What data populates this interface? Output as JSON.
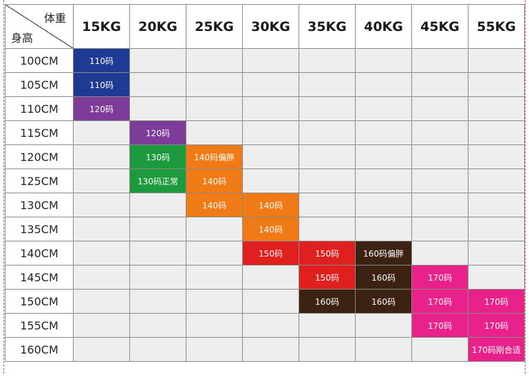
{
  "header": {
    "corner_top": "体重",
    "corner_bottom": "身高",
    "weights": [
      "15KG",
      "20KG",
      "25KG",
      "30KG",
      "35KG",
      "40KG",
      "45KG",
      "55KG"
    ]
  },
  "rows": [
    {
      "height": "100CM",
      "cells": [
        "110码",
        "",
        "",
        "",
        "",
        "",
        "",
        ""
      ]
    },
    {
      "height": "105CM",
      "cells": [
        "110码",
        "",
        "",
        "",
        "",
        "",
        "",
        ""
      ]
    },
    {
      "height": "110CM",
      "cells": [
        "120码",
        "",
        "",
        "",
        "",
        "",
        "",
        ""
      ]
    },
    {
      "height": "115CM",
      "cells": [
        "",
        "120码",
        "",
        "",
        "",
        "",
        "",
        ""
      ]
    },
    {
      "height": "120CM",
      "cells": [
        "",
        "130码",
        "140码偏胖",
        "",
        "",
        "",
        "",
        ""
      ]
    },
    {
      "height": "125CM",
      "cells": [
        "",
        "130码正常",
        "140码",
        "",
        "",
        "",
        "",
        ""
      ]
    },
    {
      "height": "130CM",
      "cells": [
        "",
        "",
        "140码",
        "140码",
        "",
        "",
        "",
        ""
      ]
    },
    {
      "height": "135CM",
      "cells": [
        "",
        "",
        "",
        "140码",
        "",
        "",
        "",
        ""
      ]
    },
    {
      "height": "140CM",
      "cells": [
        "",
        "",
        "",
        "150码",
        "150码",
        "160码偏胖",
        "",
        ""
      ]
    },
    {
      "height": "145CM",
      "cells": [
        "",
        "",
        "",
        "",
        "150码",
        "160码",
        "170码",
        ""
      ]
    },
    {
      "height": "150CM",
      "cells": [
        "",
        "",
        "",
        "",
        "160码",
        "160码",
        "170码",
        "170码"
      ]
    },
    {
      "height": "155CM",
      "cells": [
        "",
        "",
        "",
        "",
        "",
        "",
        "170码",
        "170码"
      ]
    },
    {
      "height": "160CM",
      "cells": [
        "",
        "",
        "",
        "",
        "",
        "",
        "",
        "170码刚合适"
      ]
    }
  ],
  "cell_colors": {
    "navy": "#1f3a93",
    "purple": "#7d3c98",
    "green": "#1e9a3e",
    "orange": "#f07a16",
    "red": "#e0201f",
    "brown": "#3c2212",
    "pink": "#e8228a"
  }
}
